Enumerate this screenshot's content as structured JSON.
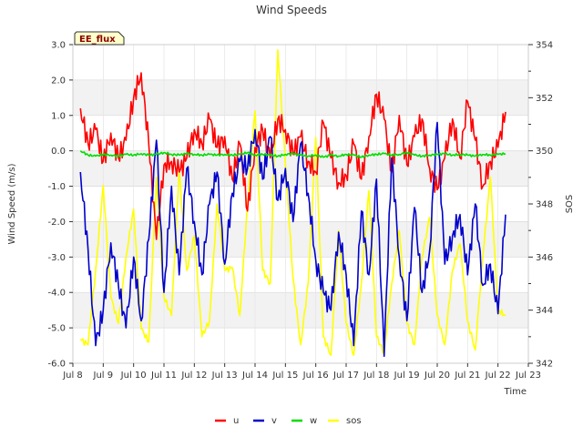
{
  "chart_data": {
    "type": "line",
    "title": "Wind Speeds",
    "badge": "EE_flux",
    "xlabel": "Time",
    "ylabel": "Wind Speed (m/s)",
    "y2label": "SOS",
    "x_range": [
      8,
      23
    ],
    "x_ticks": [
      8,
      9,
      10,
      11,
      12,
      13,
      14,
      15,
      16,
      17,
      18,
      19,
      20,
      21,
      22,
      23
    ],
    "x_tick_labels": [
      "Jul 8",
      "Jul 9",
      "Jul 10",
      "Jul 11",
      "Jul 12",
      "Jul 13",
      "Jul 14",
      "Jul 15",
      "Jul 16",
      "Jul 17",
      "Jul 18",
      "Jul 19",
      "Jul 20",
      "Jul 21",
      "Jul 22",
      "Jul 23"
    ],
    "ylim": [
      -6,
      3
    ],
    "y_ticks": [
      -6,
      -5,
      -4,
      -3,
      -2,
      -1,
      0,
      1,
      2,
      3
    ],
    "y_tick_labels": [
      "-6.0",
      "-5.0",
      "-4.0",
      "-3.0",
      "-2.0",
      "-1.0",
      "0.0",
      "1.0",
      "2.0",
      "3.0"
    ],
    "y2lim": [
      342,
      354
    ],
    "y2_ticks": [
      342,
      344,
      346,
      348,
      350,
      352,
      354
    ],
    "y2_tick_labels": [
      "342",
      "344",
      "346",
      "348",
      "350",
      "352",
      "354"
    ],
    "band_color": "#f2f2f2",
    "series": [
      {
        "name": "u",
        "color": "#ff0000",
        "axis": "left",
        "x": [
          8.25,
          8.5,
          8.75,
          9.0,
          9.25,
          9.5,
          9.75,
          10.0,
          10.25,
          10.5,
          10.75,
          11.0,
          11.25,
          11.5,
          11.75,
          12.0,
          12.25,
          12.5,
          12.75,
          13.0,
          13.25,
          13.5,
          13.75,
          14.0,
          14.25,
          14.5,
          14.75,
          15.0,
          15.25,
          15.5,
          15.75,
          16.0,
          16.25,
          16.5,
          16.75,
          17.0,
          17.25,
          17.5,
          17.75,
          18.0,
          18.25,
          18.5,
          18.75,
          19.0,
          19.25,
          19.5,
          19.75,
          20.0,
          20.25,
          20.5,
          20.75,
          21.0,
          21.25,
          21.5,
          21.75,
          22.0,
          22.25
        ],
        "values": [
          1.2,
          0.2,
          0.6,
          -0.3,
          0.5,
          -0.2,
          0.3,
          1.5,
          2.2,
          0.2,
          -2.5,
          -0.4,
          -0.3,
          -0.6,
          -0.2,
          0.6,
          0.2,
          0.9,
          0.1,
          0.4,
          -0.8,
          0.2,
          -1.7,
          0.1,
          0.6,
          -0.2,
          0.9,
          0.6,
          -0.1,
          0.4,
          -0.3,
          -0.6,
          0.8,
          -0.2,
          -0.9,
          -0.7,
          0.2,
          -0.8,
          0.4,
          1.6,
          0.9,
          -0.6,
          1.0,
          -0.4,
          0.4,
          0.9,
          -0.5,
          -1.1,
          -0.2,
          0.9,
          -0.2,
          1.4,
          0.3,
          -1.0,
          -0.3,
          0.1,
          1.1
        ]
      },
      {
        "name": "v",
        "color": "#0000cc",
        "axis": "left",
        "x": [
          8.25,
          8.5,
          8.75,
          9.0,
          9.25,
          9.5,
          9.75,
          10.0,
          10.25,
          10.5,
          10.75,
          11.0,
          11.25,
          11.5,
          11.75,
          12.0,
          12.25,
          12.5,
          12.75,
          13.0,
          13.25,
          13.5,
          13.75,
          14.0,
          14.25,
          14.5,
          14.75,
          15.0,
          15.25,
          15.5,
          15.75,
          16.0,
          16.25,
          16.5,
          16.75,
          17.0,
          17.25,
          17.5,
          17.75,
          18.0,
          18.25,
          18.5,
          18.75,
          19.0,
          19.25,
          19.5,
          19.75,
          20.0,
          20.25,
          20.5,
          20.75,
          21.0,
          21.25,
          21.5,
          21.75,
          22.0,
          22.25
        ],
        "values": [
          -0.6,
          -2.8,
          -5.5,
          -4.5,
          -2.6,
          -3.8,
          -5.0,
          -3.0,
          -4.8,
          -2.5,
          0.3,
          -4.0,
          -1.0,
          -3.5,
          -0.5,
          -2.0,
          -3.5,
          -1.5,
          -0.6,
          -3.2,
          -1.2,
          -0.3,
          -0.5,
          0.6,
          -0.8,
          0.4,
          -1.4,
          -0.5,
          -2.0,
          0.2,
          -1.2,
          -3.1,
          -4.0,
          -4.5,
          -2.3,
          -3.5,
          -5.5,
          -1.7,
          -3.5,
          -0.8,
          -5.8,
          -0.2,
          -3.0,
          -4.8,
          -1.6,
          -4.0,
          -2.8,
          0.8,
          -3.2,
          -2.4,
          -1.8,
          -3.5,
          -1.5,
          -3.8,
          -3.2,
          -4.6,
          -1.8
        ]
      },
      {
        "name": "w",
        "color": "#00dd00",
        "axis": "left",
        "x": [
          8.25,
          8.5,
          8.75,
          9.0,
          9.25,
          9.5,
          9.75,
          10.0,
          10.25,
          10.5,
          10.75,
          11.0,
          11.25,
          11.5,
          11.75,
          12.0,
          12.25,
          12.5,
          12.75,
          13.0,
          13.25,
          13.5,
          13.75,
          14.0,
          14.25,
          14.5,
          14.75,
          15.0,
          15.25,
          15.5,
          15.75,
          16.0,
          16.25,
          16.5,
          16.75,
          17.0,
          17.25,
          17.5,
          17.75,
          18.0,
          18.25,
          18.5,
          18.75,
          19.0,
          19.25,
          19.5,
          19.75,
          20.0,
          20.25,
          20.5,
          20.75,
          21.0,
          21.25,
          21.5,
          21.75,
          22.0,
          22.25
        ],
        "values": [
          0.0,
          -0.12,
          -0.15,
          -0.1,
          -0.12,
          -0.15,
          -0.1,
          -0.12,
          -0.08,
          -0.12,
          -0.1,
          -0.05,
          -0.1,
          -0.12,
          -0.08,
          -0.1,
          -0.12,
          -0.1,
          -0.12,
          -0.1,
          -0.12,
          -0.1,
          -0.05,
          -0.12,
          -0.1,
          -0.12,
          -0.15,
          -0.1,
          -0.08,
          -0.12,
          -0.15,
          -0.12,
          -0.18,
          -0.12,
          -0.15,
          -0.1,
          -0.12,
          -0.18,
          -0.12,
          -0.1,
          -0.08,
          -0.12,
          -0.1,
          -0.05,
          -0.12,
          -0.15,
          -0.12,
          -0.1,
          -0.08,
          -0.12,
          -0.1,
          -0.12,
          -0.15,
          -0.1,
          -0.12,
          -0.1,
          -0.08
        ]
      },
      {
        "name": "sos",
        "color": "#ffff00",
        "axis": "right",
        "x": [
          8.25,
          8.5,
          8.75,
          9.0,
          9.25,
          9.5,
          9.75,
          10.0,
          10.25,
          10.5,
          10.75,
          11.0,
          11.25,
          11.5,
          11.75,
          12.0,
          12.25,
          12.5,
          12.75,
          13.0,
          13.25,
          13.5,
          13.75,
          14.0,
          14.25,
          14.5,
          14.75,
          15.0,
          15.25,
          15.5,
          15.75,
          16.0,
          16.25,
          16.5,
          16.75,
          17.0,
          17.25,
          17.5,
          17.75,
          18.0,
          18.25,
          18.5,
          18.75,
          19.0,
          19.25,
          19.5,
          19.75,
          20.0,
          20.25,
          20.5,
          20.75,
          21.0,
          21.25,
          21.5,
          21.75,
          22.0,
          22.25
        ],
        "values": [
          342.9,
          342.7,
          345.5,
          348.7,
          344.5,
          343.5,
          346.0,
          347.8,
          343.3,
          342.8,
          349.0,
          344.5,
          343.8,
          349.3,
          345.5,
          346.8,
          343.0,
          343.6,
          348.0,
          345.5,
          345.6,
          343.8,
          348.0,
          351.5,
          345.5,
          345.0,
          353.8,
          349.5,
          345.2,
          342.7,
          345.0,
          350.5,
          343.0,
          342.3,
          347.0,
          343.5,
          342.3,
          345.0,
          348.5,
          343.0,
          342.4,
          345.0,
          347.0,
          343.5,
          342.7,
          346.0,
          347.5,
          343.8,
          342.7,
          345.5,
          346.5,
          343.6,
          342.5,
          346.0,
          349.0,
          344.0,
          343.8
        ]
      }
    ],
    "legend_position": "bottom-center"
  }
}
